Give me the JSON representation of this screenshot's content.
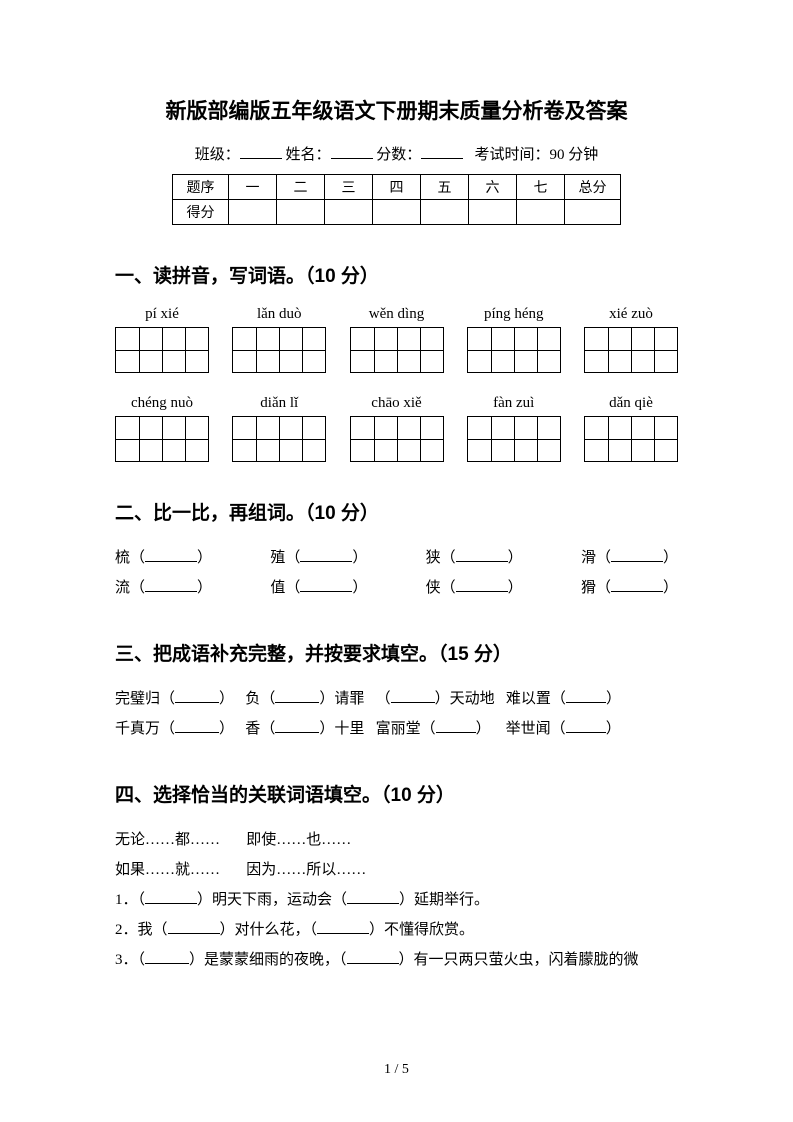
{
  "title": "新版部编版五年级语文下册期末质量分析卷及答案",
  "info": {
    "class_label": "班级：",
    "name_label": "姓名：",
    "score_label": "分数：",
    "time_label": "考试时间：90 分钟"
  },
  "score_table": {
    "row1": [
      "题序",
      "一",
      "二",
      "三",
      "四",
      "五",
      "六",
      "七",
      "总分"
    ],
    "row2_head": "得分"
  },
  "section1": {
    "heading": "一、读拼音，写词语。（10 分）",
    "pinyin_row1": [
      "pí  xié",
      "lǎn duò",
      "wěn dìng",
      "píng héng",
      "xié zuò"
    ],
    "pinyin_row2": [
      "chéng nuò",
      "diǎn lǐ",
      "chāo xiě",
      "fàn zuì",
      "dǎn qiè"
    ]
  },
  "section2": {
    "heading": "二、比一比，再组词。（10 分）",
    "row1": [
      "梳",
      "殖",
      "狭",
      "滑"
    ],
    "row2": [
      "流",
      "值",
      "侠",
      "猾"
    ]
  },
  "section3": {
    "heading": "三、把成语补充完整，并按要求填空。（15 分）",
    "row1": {
      "a": "完璧归",
      "b": "负",
      "c": "请罪",
      "d": "天动地",
      "e": "难以置"
    },
    "row2": {
      "a": "千真万",
      "b": "香",
      "c": "十里",
      "d": "富丽堂",
      "e": "举世闻"
    }
  },
  "section4": {
    "heading": "四、选择恰当的关联词语填空。（10 分）",
    "opt1a": "无论……都……",
    "opt1b": "即使……也……",
    "opt2a": "如果……就……",
    "opt2b": "因为……所以……",
    "q1a": "1．（",
    "q1b": "）明天下雨，运动会（",
    "q1c": "）延期举行。",
    "q2a": "2．我（",
    "q2b": "）对什么花，（",
    "q2c": "）不懂得欣赏。",
    "q3a": "3．（",
    "q3b": "）是蒙蒙细雨的夜晚，（",
    "q3c": "）有一只两只萤火虫，闪着朦胧的微"
  },
  "footer": "1 / 5"
}
